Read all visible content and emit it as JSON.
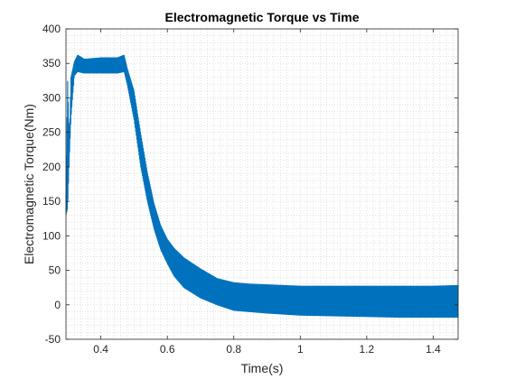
{
  "chart_data": {
    "type": "line",
    "title": "Electromagnetic Torque vs Time",
    "xlabel": "Time(s)",
    "ylabel": "Electromagnetic Torque(Nm)",
    "xlim": [
      0.295,
      1.475
    ],
    "ylim": [
      -50,
      400
    ],
    "xticks": [
      0.4,
      0.6,
      0.8,
      1,
      1.2,
      1.4
    ],
    "xtick_labels": [
      "0.4",
      "0.6",
      "0.8",
      "1",
      "1.2",
      "1.4"
    ],
    "yticks": [
      -50,
      0,
      50,
      100,
      150,
      200,
      250,
      300,
      350,
      400
    ],
    "ytick_labels": [
      "-50",
      "0",
      "50",
      "100",
      "150",
      "200",
      "250",
      "300",
      "350",
      "400"
    ],
    "grid": "minor-dotted",
    "color": "#0072BD",
    "series": [
      {
        "x": [
          0.295,
          0.3,
          0.305,
          0.31,
          0.32,
          0.33,
          0.35,
          0.4,
          0.45,
          0.47,
          0.48,
          0.5,
          0.52,
          0.54,
          0.56,
          0.58,
          0.6,
          0.62,
          0.65,
          0.7,
          0.75,
          0.8,
          0.85,
          0.9,
          1.0,
          1.1,
          1.2,
          1.3,
          1.4,
          1.475
        ],
        "y_upper": [
          160,
          325,
          235,
          330,
          352,
          362,
          356,
          358,
          358,
          362,
          342,
          310,
          248,
          192,
          147,
          115,
          95,
          82,
          68,
          52,
          38,
          32,
          30,
          29,
          27,
          27,
          27,
          27,
          27,
          28
        ],
        "y_lower": [
          130,
          140,
          210,
          270,
          332,
          338,
          336,
          336,
          336,
          338,
          318,
          268,
          200,
          150,
          110,
          80,
          60,
          42,
          25,
          10,
          0,
          -8,
          -10,
          -12,
          -15,
          -16,
          -17,
          -18,
          -18,
          -18
        ]
      }
    ]
  }
}
